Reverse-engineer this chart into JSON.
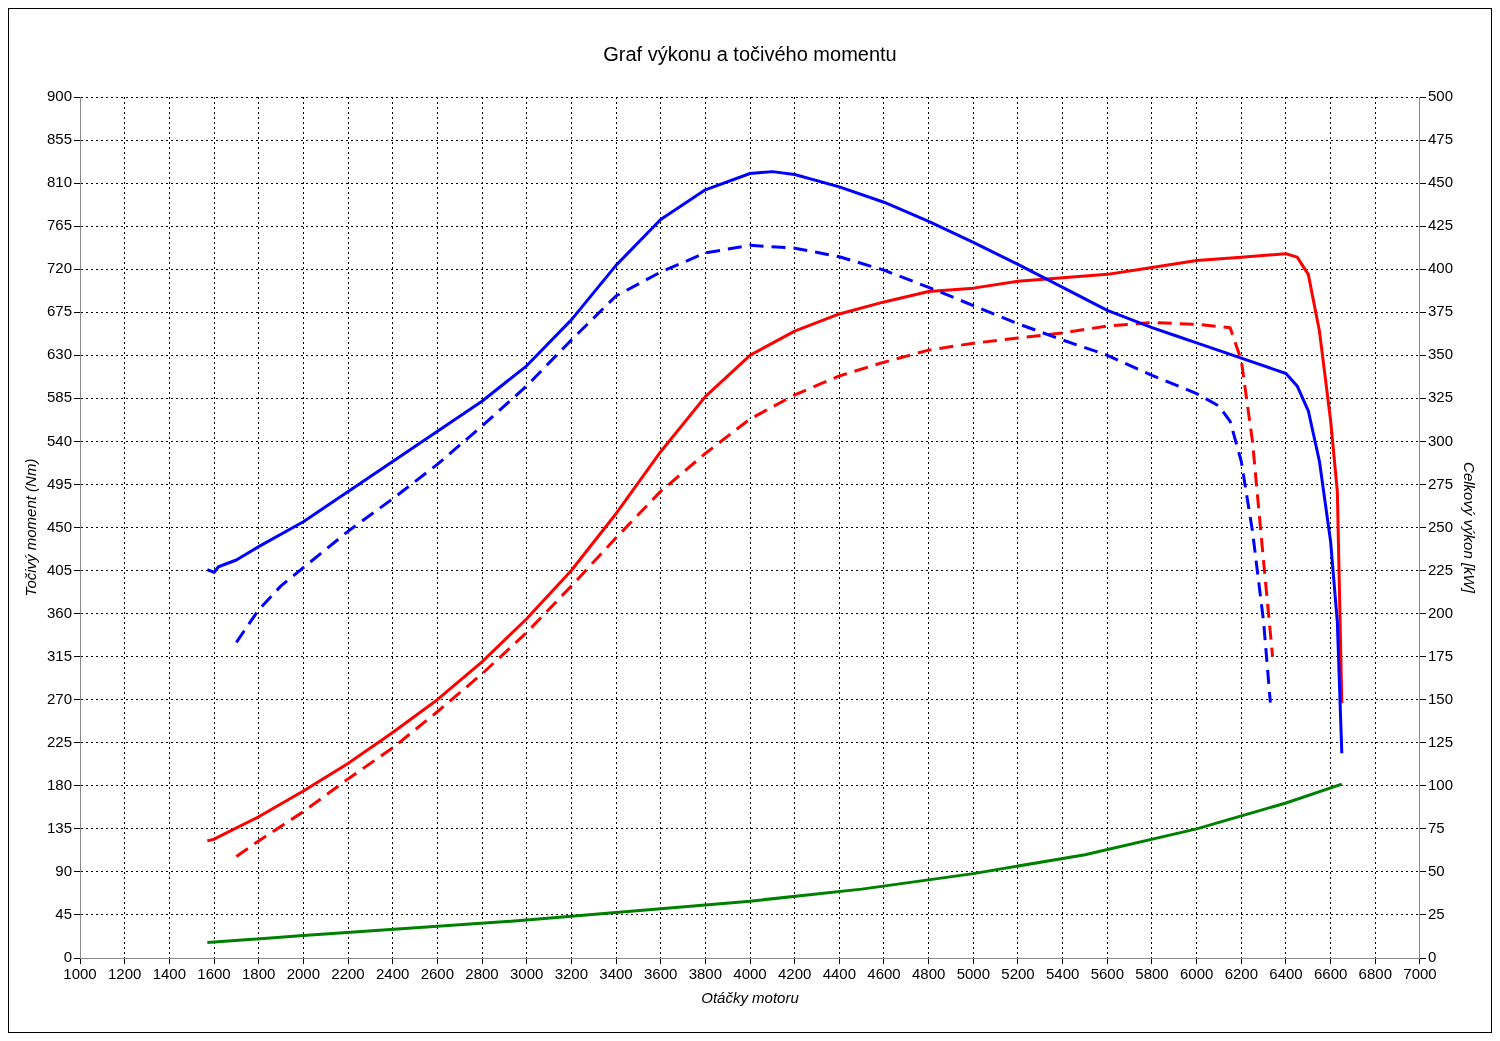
{
  "chart_data": {
    "type": "line",
    "title": "Graf výkonu a točivého momentu",
    "xlabel": "Otáčky motoru",
    "ylabel": "Točivý moment (Nm)",
    "y2label": "Celkový výkon [kW]",
    "xlim": [
      1000,
      7000
    ],
    "xticks": [
      1000,
      1200,
      1400,
      1600,
      1800,
      2000,
      2200,
      2400,
      2600,
      2800,
      3000,
      3200,
      3400,
      3600,
      3800,
      4000,
      4200,
      4400,
      4600,
      4800,
      5000,
      5200,
      5400,
      5600,
      5800,
      6000,
      6200,
      6400,
      6600,
      6800,
      7000
    ],
    "ylim": [
      0,
      900
    ],
    "yticks": [
      0,
      45,
      90,
      135,
      180,
      225,
      270,
      315,
      360,
      405,
      450,
      495,
      540,
      585,
      630,
      675,
      720,
      765,
      810,
      855,
      900
    ],
    "y2lim": [
      0,
      500
    ],
    "y2ticks": [
      0,
      25,
      50,
      75,
      100,
      125,
      150,
      175,
      200,
      225,
      250,
      275,
      300,
      325,
      350,
      375,
      400,
      425,
      450,
      475,
      500
    ],
    "grid": true,
    "legend": false,
    "marker": "none",
    "series": [
      {
        "color": "#0000ff",
        "line_style": "solid",
        "x": [
          1570,
          1600,
          1620,
          1700,
          1800,
          2000,
          2400,
          2800,
          3000,
          3200,
          3400,
          3600,
          3800,
          4000,
          4100,
          4200,
          4400,
          4600,
          4800,
          5000,
          5200,
          5400,
          5600,
          5800,
          5900,
          6000,
          6200,
          6400,
          6450,
          6500,
          6550,
          6600,
          6630,
          6650
        ],
        "values": [
          406,
          403,
          409,
          416,
          430,
          456,
          519,
          582,
          619,
          667,
          724,
          772,
          803,
          820,
          822,
          819,
          806,
          790,
          770,
          748,
          725,
          701,
          677,
          659,
          651,
          643,
          627,
          611,
          598,
          572,
          519,
          435,
          351,
          214
        ]
      },
      {
        "color": "#0000ff",
        "line_style": "dashed",
        "x": [
          1700,
          1800,
          1900,
          2000,
          2200,
          2400,
          2600,
          2800,
          3000,
          3200,
          3400,
          3600,
          3800,
          4000,
          4200,
          4400,
          4600,
          4800,
          5000,
          5200,
          5400,
          5600,
          5800,
          6000,
          6100,
          6150,
          6200,
          6250,
          6300,
          6330
        ],
        "values": [
          330,
          364,
          389,
          408,
          446,
          480,
          516,
          556,
          598,
          646,
          692,
          717,
          737,
          745,
          742,
          733,
          719,
          701,
          682,
          663,
          646,
          630,
          609,
          590,
          577,
          561,
          519,
          446,
          351,
          267
        ]
      },
      {
        "color": "#ff0000",
        "line_style": "solid",
        "axis": "y2",
        "x": [
          1570,
          1600,
          1800,
          2000,
          2200,
          2400,
          2600,
          2800,
          3000,
          3200,
          3400,
          3600,
          3800,
          4000,
          4200,
          4400,
          4600,
          4800,
          5000,
          5200,
          5400,
          5600,
          5800,
          6000,
          6200,
          6400,
          6450,
          6500,
          6550,
          6600,
          6630,
          6650
        ],
        "values": [
          68,
          69,
          82,
          97,
          113,
          131,
          150,
          172,
          197,
          225,
          258,
          294,
          326,
          350,
          364,
          374,
          381,
          387,
          389,
          393,
          395,
          397,
          401,
          405,
          407,
          409,
          407,
          397,
          364,
          312,
          271,
          148
        ]
      },
      {
        "color": "#ff0000",
        "line_style": "dashed",
        "axis": "y2",
        "x": [
          1700,
          1800,
          2000,
          2200,
          2400,
          2600,
          2800,
          3000,
          3200,
          3400,
          3600,
          3800,
          4000,
          4200,
          4400,
          4600,
          4800,
          5000,
          5200,
          5400,
          5600,
          5800,
          6000,
          6150,
          6200,
          6250,
          6300,
          6340
        ],
        "values": [
          59,
          68,
          85,
          104,
          122,
          143,
          165,
          189,
          216,
          244,
          271,
          293,
          313,
          327,
          338,
          346,
          353,
          357,
          360,
          363,
          367,
          369,
          368,
          366,
          347,
          300,
          230,
          175
        ]
      },
      {
        "color": "#008000",
        "line_style": "solid",
        "axis": "y2",
        "x": [
          1570,
          2000,
          3000,
          4000,
          4500,
          5000,
          5500,
          6000,
          6400,
          6650
        ],
        "values": [
          9,
          13,
          22,
          33,
          40,
          49,
          60,
          75,
          90,
          101
        ]
      }
    ]
  }
}
